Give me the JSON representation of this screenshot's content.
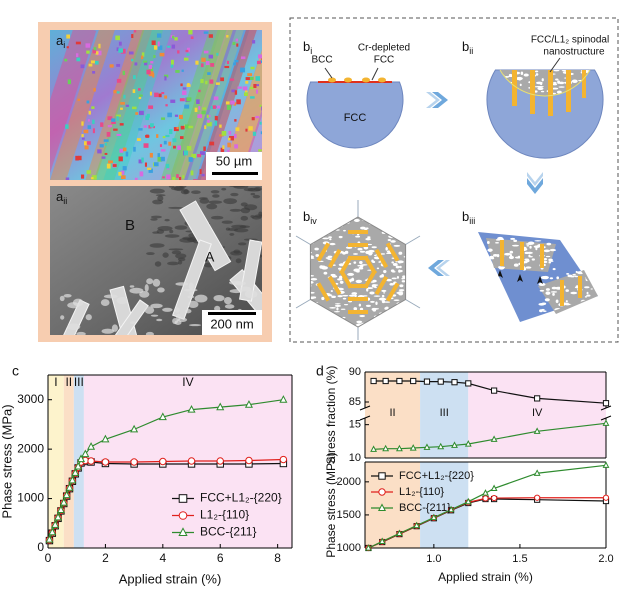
{
  "panel_a": {
    "top_label": {
      "main": "a",
      "sub": "i"
    },
    "top_scale_bar": "50 µm",
    "bottom_label": {
      "main": "a",
      "sub": "ii"
    },
    "bottom_scale_bar": "200 nm",
    "region_b": "B",
    "region_a": "A"
  },
  "panel_b": {
    "steps": [
      {
        "main": "b",
        "sub": "i"
      },
      {
        "main": "b",
        "sub": "ii"
      },
      {
        "main": "b",
        "sub": "iii"
      },
      {
        "main": "b",
        "sub": "iv"
      }
    ],
    "bcc": "BCC",
    "cr_depleted": [
      "Cr-depleted",
      "FCC"
    ],
    "fcc": "FCC",
    "spinodal": [
      "FCC/L1₂ spinodal",
      "nanostructure"
    ]
  },
  "chart_data": [
    {
      "type": "line",
      "panel_label": "c",
      "xlabel": "Applied strain (%)",
      "ylabel": "Phase stress (MPa)",
      "xlim": [
        0,
        8.5
      ],
      "ylim": [
        0,
        3500
      ],
      "xticks": [
        0,
        2,
        4,
        6,
        8
      ],
      "yticks": [
        0,
        1000,
        2000,
        3000
      ],
      "legend": "lower right",
      "regions": [
        {
          "label": "I",
          "x": [
            0,
            0.55
          ],
          "color": "#fdf3cc"
        },
        {
          "label": "II",
          "x": [
            0.55,
            0.9
          ],
          "color": "#fbdfc6"
        },
        {
          "label": "III",
          "x": [
            0.9,
            1.25
          ],
          "color": "#cde0f2"
        },
        {
          "label": "IV",
          "x": [
            1.25,
            8.5
          ],
          "color": "#fbe2f3"
        }
      ],
      "x": [
        0.05,
        0.15,
        0.25,
        0.35,
        0.45,
        0.55,
        0.65,
        0.75,
        0.85,
        0.95,
        1.05,
        1.15,
        1.3,
        1.5,
        2,
        3,
        4,
        5,
        6,
        7,
        8.2
      ],
      "series": [
        {
          "name": "FCC+L1₂-{220}",
          "color": "#111111",
          "marker": "square",
          "values": [
            150,
            300,
            450,
            600,
            750,
            900,
            1050,
            1200,
            1350,
            1500,
            1620,
            1720,
            1750,
            1740,
            1710,
            1700,
            1700,
            1700,
            1700,
            1700,
            1710
          ]
        },
        {
          "name": "L1₂-{110}",
          "color": "#e0201c",
          "marker": "circle",
          "values": [
            160,
            310,
            460,
            610,
            760,
            910,
            1060,
            1210,
            1360,
            1510,
            1630,
            1740,
            1770,
            1760,
            1740,
            1740,
            1750,
            1760,
            1760,
            1770,
            1790
          ]
        },
        {
          "name": "BCC-{211}",
          "color": "#2e8b2e",
          "marker": "triangle",
          "values": [
            170,
            320,
            470,
            620,
            770,
            920,
            1070,
            1220,
            1370,
            1520,
            1650,
            1800,
            1900,
            2050,
            2200,
            2400,
            2650,
            2800,
            2850,
            2900,
            3000
          ]
        }
      ]
    },
    {
      "type": "line",
      "panel_label": "d",
      "ylabel": "Stress fraction (%)",
      "xlim": [
        0.6,
        2.0
      ],
      "ylim": [
        84,
        90
      ],
      "yticks": [
        85,
        90
      ],
      "regions": [
        {
          "label": "II",
          "x": [
            0.6,
            0.92
          ],
          "color": "#fbdfc6"
        },
        {
          "label": "III",
          "x": [
            0.92,
            1.2
          ],
          "color": "#cde0f2"
        },
        {
          "label": "IV",
          "x": [
            1.2,
            2.0
          ],
          "color": "#fbe2f3"
        }
      ],
      "x": [
        0.65,
        0.72,
        0.8,
        0.88,
        0.96,
        1.04,
        1.12,
        1.2,
        1.35,
        1.6,
        2.0
      ],
      "series": [
        {
          "name": "FCC+L1₂-{220}",
          "color": "#111111",
          "marker": "square",
          "values": [
            88.5,
            88.5,
            88.5,
            88.5,
            88.4,
            88.4,
            88.3,
            88.1,
            86.9,
            85.6,
            84.8
          ]
        }
      ]
    },
    {
      "type": "line",
      "xlim": [
        0.6,
        2.0
      ],
      "ylim": [
        10,
        16
      ],
      "yticks": [
        10,
        15
      ],
      "x": [
        0.65,
        0.72,
        0.8,
        0.88,
        0.96,
        1.04,
        1.12,
        1.2,
        1.35,
        1.6,
        2.0
      ],
      "series": [
        {
          "name": "BCC-{211}",
          "color": "#2e8b2e",
          "marker": "triangle",
          "values": [
            11.3,
            11.4,
            11.4,
            11.5,
            11.6,
            11.7,
            11.9,
            12.1,
            12.8,
            14.0,
            15.2
          ]
        }
      ]
    },
    {
      "type": "line",
      "xlabel": "Applied strain (%)",
      "ylabel": "Phase stress (MPa)",
      "xlim": [
        0.6,
        2.0
      ],
      "ylim": [
        1000,
        2300
      ],
      "xticks": [
        {
          "value": 1,
          "label": "1.0"
        },
        {
          "value": 1.5,
          "label": "1.5"
        },
        {
          "value": 2,
          "label": "2.0"
        }
      ],
      "yticks": [
        1000,
        1500,
        2000
      ],
      "legend": "upper left",
      "regions": [
        {
          "x": [
            0.6,
            0.92
          ],
          "color": "#fbdfc6"
        },
        {
          "x": [
            0.92,
            1.2
          ],
          "color": "#cde0f2"
        }
      ],
      "x": [
        0.62,
        0.7,
        0.8,
        0.9,
        1.0,
        1.1,
        1.2,
        1.3,
        1.35,
        1.6,
        2.0
      ],
      "series": [
        {
          "name": "FCC+L1₂-{220}",
          "color": "#111111",
          "marker": "square",
          "values": [
            1000,
            1090,
            1210,
            1330,
            1450,
            1570,
            1680,
            1740,
            1740,
            1730,
            1710
          ]
        },
        {
          "name": "L1₂-{110}",
          "color": "#e0201c",
          "marker": "circle",
          "values": [
            1000,
            1095,
            1215,
            1335,
            1455,
            1575,
            1690,
            1750,
            1755,
            1760,
            1760
          ]
        },
        {
          "name": "BCC-{211}",
          "color": "#2e8b2e",
          "marker": "triangle",
          "values": [
            1000,
            1100,
            1220,
            1340,
            1460,
            1580,
            1700,
            1830,
            1900,
            2130,
            2250
          ]
        }
      ]
    }
  ]
}
